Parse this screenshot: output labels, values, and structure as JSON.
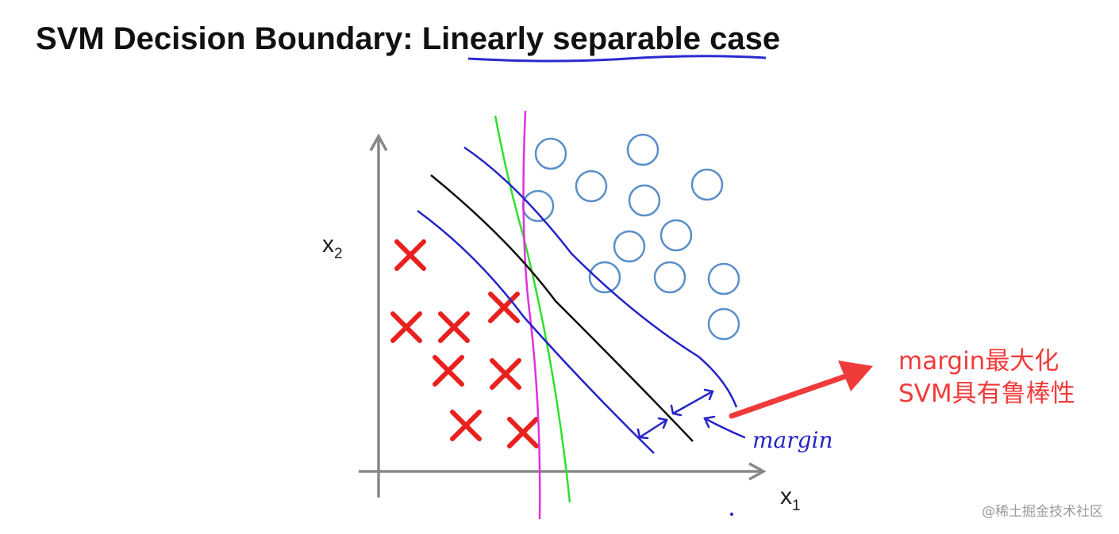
{
  "title": {
    "before": "SVM Decision Boundary: ",
    "emphasis": "Linearly separable",
    "after": " case"
  },
  "axes": {
    "y_label": {
      "text": "x",
      "subscript": "2"
    },
    "x_label": {
      "text": "x",
      "subscript": "1"
    }
  },
  "margin_label": "margin",
  "annotation": {
    "lines": [
      "margin最大化",
      "SVM具有鲁棒性"
    ]
  },
  "watermark": "@稀土掘金技术社区"
}
